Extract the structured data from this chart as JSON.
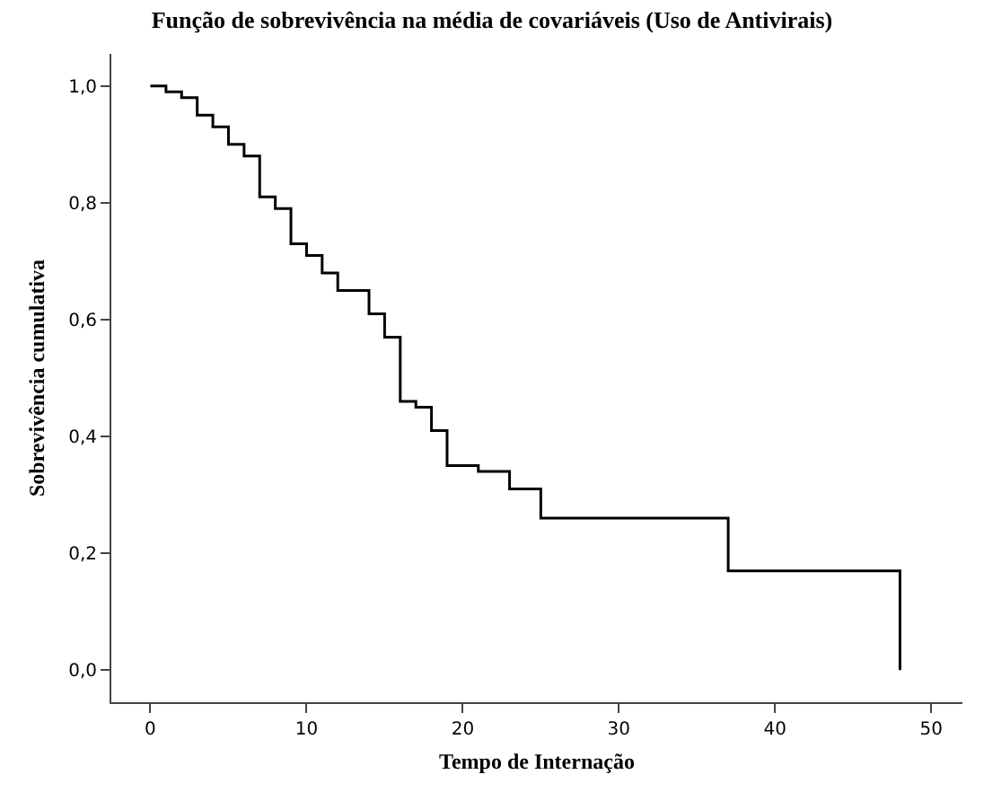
{
  "chart_data": {
    "type": "step",
    "title": "Função de sobrevivência na média de covariáveis (Uso de Antivirais)",
    "xlabel": "Tempo de Internação",
    "ylabel": "Sobrevivência cumulativa",
    "x": [
      0,
      1,
      2,
      3,
      4,
      5,
      6,
      7,
      8,
      9,
      10,
      11,
      12,
      14,
      15,
      16,
      17,
      18,
      19,
      21,
      23,
      25,
      37,
      48
    ],
    "series": [
      {
        "color": "#000000",
        "values": [
          1.0,
          0.99,
          0.98,
          0.95,
          0.93,
          0.9,
          0.88,
          0.81,
          0.79,
          0.73,
          0.71,
          0.68,
          0.65,
          0.61,
          0.57,
          0.46,
          0.45,
          0.41,
          0.35,
          0.34,
          0.31,
          0.26,
          0.17,
          0.0
        ]
      }
    ],
    "xlim": [
      -2.5,
      52
    ],
    "ylim": [
      -0.055,
      1.055
    ],
    "xticks": [
      0,
      10,
      20,
      30,
      40,
      50
    ],
    "yticks": [
      {
        "value": 0.0,
        "label": "0,0"
      },
      {
        "value": 0.2,
        "label": "0,2"
      },
      {
        "value": 0.4,
        "label": "0,4"
      },
      {
        "value": 0.6,
        "label": "0,6"
      },
      {
        "value": 0.8,
        "label": "0,8"
      },
      {
        "value": 1.0,
        "label": "1,0"
      }
    ],
    "marker": "none",
    "line_style": "solid"
  }
}
